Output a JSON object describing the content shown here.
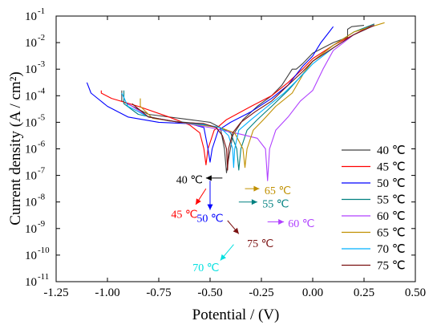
{
  "chart_data": {
    "type": "line",
    "xlabel": "Potential / (V)",
    "ylabel": "Current density (A / cm²)",
    "xlim": [
      -1.25,
      0.5
    ],
    "ylim_log10": [
      -11,
      -1
    ],
    "yscale": "log",
    "x_ticks": [
      "-1.25",
      "-1.00",
      "-0.75",
      "-0.50",
      "-0.25",
      "0.00",
      "0.25",
      "0.50"
    ],
    "x_tick_values": [
      -1.25,
      -1.0,
      -0.75,
      -0.5,
      -0.25,
      0.0,
      0.25,
      0.5
    ],
    "y_ticks": [
      {
        "base": "10",
        "exp": "-1",
        "value": -1
      },
      {
        "base": "10",
        "exp": "-2",
        "value": -2
      },
      {
        "base": "10",
        "exp": "-3",
        "value": -3
      },
      {
        "base": "10",
        "exp": "-4",
        "value": -4
      },
      {
        "base": "10",
        "exp": "-5",
        "value": -5
      },
      {
        "base": "10",
        "exp": "-6",
        "value": -6
      },
      {
        "base": "10",
        "exp": "-7",
        "value": -7
      },
      {
        "base": "10",
        "exp": "-8",
        "value": -8
      },
      {
        "base": "10",
        "exp": "-9",
        "value": -9
      },
      {
        "base": "10",
        "exp": "-10",
        "value": -10
      },
      {
        "base": "10",
        "exp": "-11",
        "value": -11
      }
    ],
    "legend_position": "right",
    "series": [
      {
        "name": "40 ℃",
        "color": "#404040",
        "points": [
          [
            -0.93,
            -3.8
          ],
          [
            -0.93,
            -4.2
          ],
          [
            -0.8,
            -4.7
          ],
          [
            -0.6,
            -4.9
          ],
          [
            -0.5,
            -5.0
          ],
          [
            -0.45,
            -5.2
          ],
          [
            -0.43,
            -6.0
          ],
          [
            -0.42,
            -6.9
          ],
          [
            -0.41,
            -6.4
          ],
          [
            -0.39,
            -5.5
          ],
          [
            -0.34,
            -4.9
          ],
          [
            -0.27,
            -4.4
          ],
          [
            -0.2,
            -4.0
          ],
          [
            -0.15,
            -3.6
          ],
          [
            -0.1,
            -3.0
          ],
          [
            -0.08,
            -3.0
          ],
          [
            -0.05,
            -2.8
          ],
          [
            0.0,
            -2.4
          ],
          [
            0.1,
            -2.0
          ],
          [
            0.17,
            -1.8
          ],
          [
            0.17,
            -1.5
          ],
          [
            0.19,
            -1.4
          ],
          [
            0.25,
            -1.35
          ]
        ]
      },
      {
        "name": "45 ℃",
        "color": "#ff0000",
        "points": [
          [
            -1.03,
            -3.8
          ],
          [
            -1.03,
            -3.9
          ],
          [
            -0.98,
            -4.1
          ],
          [
            -0.85,
            -4.4
          ],
          [
            -0.7,
            -4.8
          ],
          [
            -0.6,
            -5.1
          ],
          [
            -0.55,
            -5.4
          ],
          [
            -0.53,
            -6.0
          ],
          [
            -0.52,
            -6.6
          ],
          [
            -0.51,
            -6.0
          ],
          [
            -0.48,
            -5.3
          ],
          [
            -0.42,
            -4.9
          ],
          [
            -0.3,
            -4.4
          ],
          [
            -0.2,
            -4.0
          ],
          [
            -0.12,
            -3.5
          ],
          [
            -0.05,
            -3.0
          ],
          [
            0.0,
            -2.6
          ],
          [
            0.1,
            -2.1
          ],
          [
            0.2,
            -1.7
          ],
          [
            0.3,
            -1.3
          ]
        ]
      },
      {
        "name": "50 ℃",
        "color": "#0000ff",
        "points": [
          [
            -1.1,
            -3.5
          ],
          [
            -1.08,
            -3.9
          ],
          [
            -1.0,
            -4.4
          ],
          [
            -0.9,
            -4.8
          ],
          [
            -0.75,
            -5.0
          ],
          [
            -0.6,
            -5.05
          ],
          [
            -0.53,
            -5.2
          ],
          [
            -0.51,
            -6.0
          ],
          [
            -0.5,
            -6.5
          ],
          [
            -0.49,
            -6.0
          ],
          [
            -0.46,
            -5.3
          ],
          [
            -0.4,
            -5.0
          ],
          [
            -0.3,
            -4.6
          ],
          [
            -0.2,
            -4.1
          ],
          [
            -0.12,
            -3.6
          ],
          [
            -0.05,
            -2.9
          ],
          [
            0.0,
            -2.5
          ],
          [
            0.04,
            -2.0
          ],
          [
            0.08,
            -1.6
          ],
          [
            0.1,
            -1.4
          ]
        ]
      },
      {
        "name": "55 ℃",
        "color": "#008080",
        "points": [
          [
            -0.92,
            -3.8
          ],
          [
            -0.92,
            -4.3
          ],
          [
            -0.85,
            -4.7
          ],
          [
            -0.7,
            -4.95
          ],
          [
            -0.55,
            -5.05
          ],
          [
            -0.45,
            -5.2
          ],
          [
            -0.4,
            -5.4
          ],
          [
            -0.37,
            -6.0
          ],
          [
            -0.36,
            -6.8
          ],
          [
            -0.35,
            -6.0
          ],
          [
            -0.32,
            -5.3
          ],
          [
            -0.27,
            -4.9
          ],
          [
            -0.2,
            -4.4
          ],
          [
            -0.12,
            -3.8
          ],
          [
            -0.05,
            -3.2
          ],
          [
            0.0,
            -2.7
          ],
          [
            0.1,
            -2.1
          ],
          [
            0.2,
            -1.6
          ],
          [
            0.3,
            -1.3
          ]
        ]
      },
      {
        "name": "60 ℃",
        "color": "#b040ff",
        "points": [
          [
            -0.9,
            -4.3
          ],
          [
            -0.8,
            -4.8
          ],
          [
            -0.65,
            -5.0
          ],
          [
            -0.5,
            -5.2
          ],
          [
            -0.35,
            -5.45
          ],
          [
            -0.27,
            -5.6
          ],
          [
            -0.23,
            -6.0
          ],
          [
            -0.22,
            -7.2
          ],
          [
            -0.21,
            -6.0
          ],
          [
            -0.18,
            -5.3
          ],
          [
            -0.12,
            -4.8
          ],
          [
            -0.06,
            -4.2
          ],
          [
            0.0,
            -3.8
          ],
          [
            0.05,
            -3.0
          ],
          [
            0.1,
            -2.3
          ],
          [
            0.2,
            -1.7
          ],
          [
            0.3,
            -1.35
          ]
        ]
      },
      {
        "name": "65 ℃",
        "color": "#c09000",
        "points": [
          [
            -0.84,
            -4.1
          ],
          [
            -0.84,
            -4.4
          ],
          [
            -0.78,
            -4.85
          ],
          [
            -0.6,
            -5.05
          ],
          [
            -0.45,
            -5.2
          ],
          [
            -0.38,
            -5.4
          ],
          [
            -0.34,
            -6.0
          ],
          [
            -0.33,
            -6.7
          ],
          [
            -0.32,
            -6.0
          ],
          [
            -0.29,
            -5.3
          ],
          [
            -0.24,
            -4.9
          ],
          [
            -0.18,
            -4.4
          ],
          [
            -0.1,
            -3.9
          ],
          [
            -0.04,
            -3.1
          ],
          [
            0.0,
            -2.7
          ],
          [
            0.1,
            -2.1
          ],
          [
            0.2,
            -1.6
          ],
          [
            0.35,
            -1.25
          ]
        ]
      },
      {
        "name": "70 ℃",
        "color": "#00b0ff",
        "points": [
          [
            -0.93,
            -3.9
          ],
          [
            -0.9,
            -4.4
          ],
          [
            -0.8,
            -4.8
          ],
          [
            -0.65,
            -5.0
          ],
          [
            -0.52,
            -5.1
          ],
          [
            -0.45,
            -5.2
          ],
          [
            -0.41,
            -5.5
          ],
          [
            -0.39,
            -6.0
          ],
          [
            -0.385,
            -6.7
          ],
          [
            -0.38,
            -6.0
          ],
          [
            -0.36,
            -5.3
          ],
          [
            -0.3,
            -4.9
          ],
          [
            -0.22,
            -4.4
          ],
          [
            -0.14,
            -3.9
          ],
          [
            -0.06,
            -3.3
          ],
          [
            0.0,
            -2.8
          ],
          [
            0.1,
            -2.2
          ],
          [
            0.2,
            -1.7
          ],
          [
            0.3,
            -1.35
          ]
        ]
      },
      {
        "name": "75 ℃",
        "color": "#7a1010",
        "points": [
          [
            -0.88,
            -4.3
          ],
          [
            -0.8,
            -4.8
          ],
          [
            -0.65,
            -5.0
          ],
          [
            -0.53,
            -5.05
          ],
          [
            -0.47,
            -5.2
          ],
          [
            -0.44,
            -5.5
          ],
          [
            -0.42,
            -6.0
          ],
          [
            -0.415,
            -6.8
          ],
          [
            -0.41,
            -6.0
          ],
          [
            -0.39,
            -5.4
          ],
          [
            -0.35,
            -5.0
          ],
          [
            -0.28,
            -4.6
          ],
          [
            -0.2,
            -4.2
          ],
          [
            -0.12,
            -3.6
          ],
          [
            -0.05,
            -3.1
          ],
          [
            0.0,
            -2.7
          ],
          [
            0.1,
            -2.2
          ],
          [
            0.2,
            -1.7
          ],
          [
            0.3,
            -1.35
          ]
        ]
      }
    ],
    "annotations": [
      {
        "text": "40 ℃",
        "color": "#000000",
        "from": [
          -0.44,
          -7.1
        ],
        "to": [
          -0.52,
          -7.1
        ],
        "label_at": [
          -0.6,
          -7.15
        ],
        "anchor": "middle"
      },
      {
        "text": "45 ℃",
        "color": "#ff0000",
        "from": [
          -0.52,
          -7.5
        ],
        "to": [
          -0.57,
          -8.1
        ],
        "label_at": [
          -0.625,
          -8.45
        ],
        "anchor": "middle"
      },
      {
        "text": "50 ℃",
        "color": "#0000ff",
        "from": [
          -0.5,
          -7.2
        ],
        "to": [
          -0.5,
          -8.3
        ],
        "label_at": [
          -0.5,
          -8.6
        ],
        "anchor": "middle"
      },
      {
        "text": "65 ℃",
        "color": "#c09000",
        "from": [
          -0.33,
          -7.5
        ],
        "to": [
          -0.26,
          -7.5
        ],
        "label_at": [
          -0.235,
          -7.55
        ],
        "anchor": "start"
      },
      {
        "text": "55 ℃",
        "color": "#008080",
        "from": [
          -0.36,
          -8.0
        ],
        "to": [
          -0.27,
          -8.0
        ],
        "label_at": [
          -0.245,
          -8.05
        ],
        "anchor": "start"
      },
      {
        "text": "60 ℃",
        "color": "#b040ff",
        "from": [
          -0.22,
          -8.75
        ],
        "to": [
          -0.14,
          -8.75
        ],
        "label_at": [
          -0.12,
          -8.8
        ],
        "anchor": "start"
      },
      {
        "text": "75 ℃",
        "color": "#7a1010",
        "from": [
          -0.415,
          -8.7
        ],
        "to": [
          -0.36,
          -9.2
        ],
        "label_at": [
          -0.32,
          -9.55
        ],
        "anchor": "start"
      },
      {
        "text": "70 ℃",
        "color": "#00e0e0",
        "from": [
          -0.385,
          -9.6
        ],
        "to": [
          -0.45,
          -10.2
        ],
        "label_at": [
          -0.52,
          -10.45
        ],
        "anchor": "middle"
      }
    ]
  }
}
